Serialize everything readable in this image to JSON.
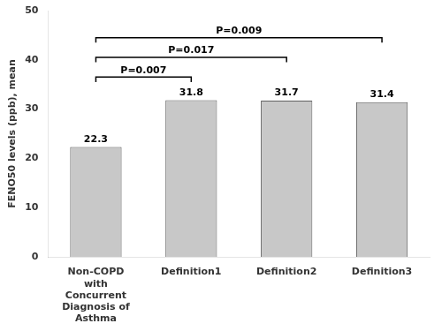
{
  "chart_data": {
    "type": "bar",
    "categories": [
      "Non-COPD\nwith\nConcurrent\nDiagnosis of\nAsthma",
      "Definition1",
      "Definition2",
      "Definition3"
    ],
    "values": [
      22.3,
      31.8,
      31.7,
      31.4
    ],
    "color": "#c8c8c8",
    "ylabel": "FENO50 levels (ppb), mean",
    "ylim": [
      0,
      50
    ],
    "yticks": [
      0,
      10,
      20,
      30,
      40,
      50
    ],
    "data_labels": true,
    "grid": false,
    "annotations": [
      {
        "from": "Non-COPD\nwith\nConcurrent\nDiagnosis of\nAsthma",
        "to": "Definition1",
        "y": 36.5,
        "label": "P=0.007"
      },
      {
        "from": "Non-COPD\nwith\nConcurrent\nDiagnosis of\nAsthma",
        "to": "Definition2",
        "y": 40.5,
        "label": "P=0.017"
      },
      {
        "from": "Non-COPD\nwith\nConcurrent\nDiagnosis of\nAsthma",
        "to": "Definition3",
        "y": 44.5,
        "label": "P=0.009"
      }
    ]
  }
}
